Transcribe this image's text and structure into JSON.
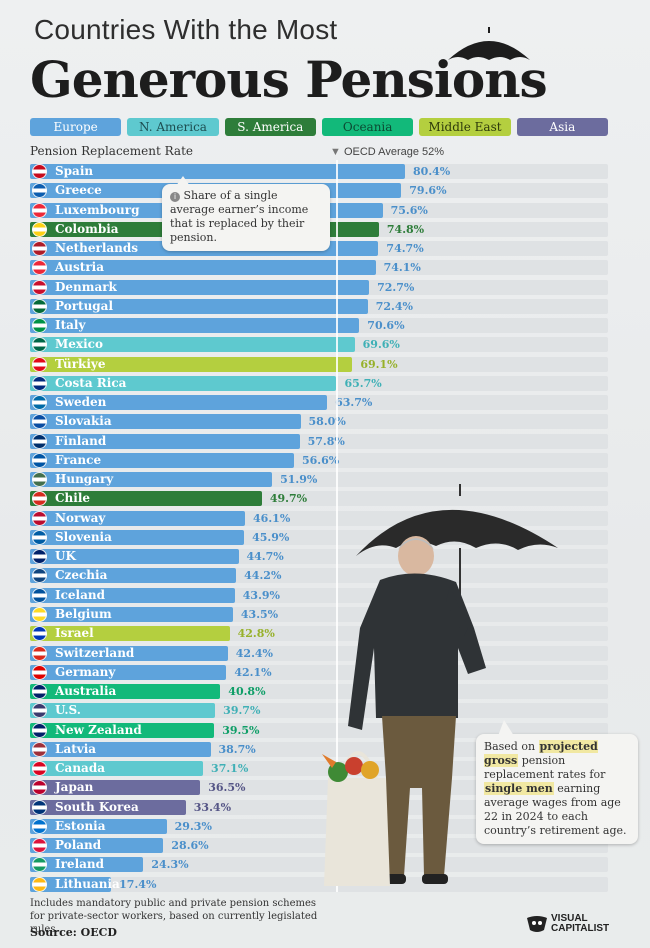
{
  "header": {
    "title_line1": "Countries With the Most",
    "title_line2": "Generous Pensions"
  },
  "legend": [
    {
      "label": "Europe",
      "color": "#5ea3dc"
    },
    {
      "label": "N. America",
      "color": "#5ec9cf"
    },
    {
      "label": "S. America",
      "color": "#2e7d3a"
    },
    {
      "label": "Oceania",
      "color": "#12b97a"
    },
    {
      "label": "Middle East",
      "color": "#b4cf3f"
    },
    {
      "label": "Asia",
      "color": "#6c6c9e"
    }
  ],
  "chart_data": {
    "type": "bar",
    "orientation": "horizontal",
    "title": "Countries With the Most Generous Pensions",
    "xlabel": "Pension Replacement Rate",
    "unit": "%",
    "xlim": [
      0,
      100
    ],
    "reference_line": {
      "label": "OECD Average 52%",
      "value": 52
    },
    "categories": [
      "Spain",
      "Greece",
      "Luxembourg",
      "Colombia",
      "Netherlands",
      "Austria",
      "Denmark",
      "Portugal",
      "Italy",
      "Mexico",
      "Türkiye",
      "Costa Rica",
      "Sweden",
      "Slovakia",
      "Finland",
      "France",
      "Hungary",
      "Chile",
      "Norway",
      "Slovenia",
      "UK",
      "Czechia",
      "Iceland",
      "Belgium",
      "Israel",
      "Switzerland",
      "Germany",
      "Australia",
      "U.S.",
      "New Zealand",
      "Latvia",
      "Canada",
      "Japan",
      "South Korea",
      "Estonia",
      "Poland",
      "Ireland",
      "Lithuania"
    ],
    "values": [
      80.4,
      79.6,
      75.6,
      74.8,
      74.7,
      74.1,
      72.7,
      72.4,
      70.6,
      69.6,
      69.1,
      65.7,
      63.7,
      58.0,
      57.8,
      56.6,
      51.9,
      49.7,
      46.1,
      45.9,
      44.7,
      44.2,
      43.9,
      43.5,
      42.8,
      42.4,
      42.1,
      40.8,
      39.7,
      39.5,
      38.7,
      37.1,
      36.5,
      33.4,
      29.3,
      28.6,
      24.3,
      17.4
    ],
    "value_labels": [
      "80.4%",
      "79.6%",
      "75.6%",
      "74.8%",
      "74.7%",
      "74.1%",
      "72.7%",
      "72.4%",
      "70.6%",
      "69.6%",
      "69.1%",
      "65.7%",
      "63.7%",
      "58.0%",
      "57.8%",
      "56.6%",
      "51.9%",
      "49.7%",
      "46.1%",
      "45.9%",
      "44.7%",
      "44.2%",
      "43.9%",
      "43.5%",
      "42.8%",
      "42.4%",
      "42.1%",
      "40.8%",
      "39.7%",
      "39.5%",
      "38.7%",
      "37.1%",
      "36.5%",
      "33.4%",
      "29.3%",
      "28.6%",
      "24.3%",
      "17.4%"
    ],
    "regions": [
      "Europe",
      "Europe",
      "Europe",
      "S. America",
      "Europe",
      "Europe",
      "Europe",
      "Europe",
      "Europe",
      "N. America",
      "Middle East",
      "N. America",
      "Europe",
      "Europe",
      "Europe",
      "Europe",
      "Europe",
      "S. America",
      "Europe",
      "Europe",
      "Europe",
      "Europe",
      "Europe",
      "Europe",
      "Middle East",
      "Europe",
      "Europe",
      "Oceania",
      "N. America",
      "Oceania",
      "Europe",
      "N. America",
      "Asia",
      "Asia",
      "Europe",
      "Europe",
      "Europe",
      "Europe"
    ]
  },
  "callouts": {
    "share_text": "Share of a single average earner’s income that is replaced by their pension.",
    "info_icon": "info-icon",
    "method_pre": "Based on ",
    "method_hl1": "projected gross",
    "method_mid1": " pension replacement rates for ",
    "method_hl2": "single men",
    "method_post": " earning average wages from age 22 in 2024 to each country’s retirement age."
  },
  "footer": {
    "note": "Includes mandatory public and private pension schemes for private-sector workers, based on currently legislated rules.",
    "source": "Source: OECD",
    "brand_line1": "VISUAL",
    "brand_line2": "CAPITALIST"
  },
  "icons": {
    "umbrella": "umbrella-icon",
    "man": "man-with-umbrella-illustration",
    "flags": "country-flag-icon"
  }
}
